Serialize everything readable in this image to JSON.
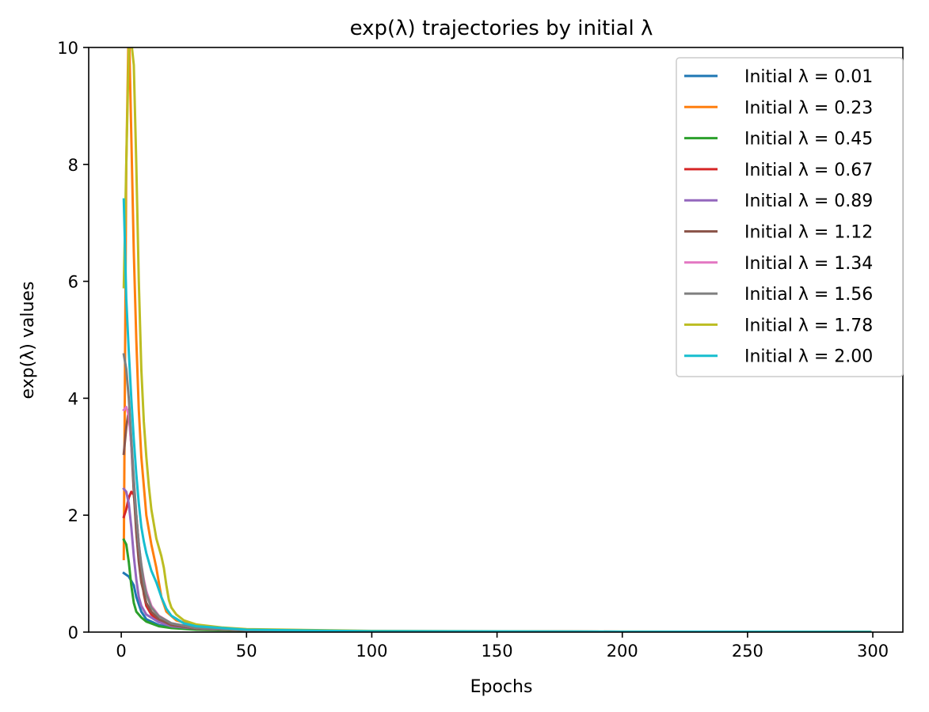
{
  "chart_data": {
    "type": "line",
    "title": "exp(λ) trajectories by initial λ",
    "xlabel": "Epochs",
    "ylabel": "exp(λ) values",
    "xlim": [
      -13,
      312
    ],
    "ylim": [
      0,
      10
    ],
    "xticks": [
      0,
      50,
      100,
      150,
      200,
      250,
      300
    ],
    "yticks": [
      0,
      2,
      4,
      6,
      8,
      10
    ],
    "grid": false,
    "legend_position": "top-right",
    "x_max": 299,
    "series": [
      {
        "name": "Initial λ = 0.01",
        "color": "#1f77b4",
        "points": [
          [
            1,
            1.01
          ],
          [
            3,
            0.95
          ],
          [
            5,
            0.8
          ],
          [
            6,
            0.6
          ],
          [
            8,
            0.35
          ],
          [
            10,
            0.22
          ],
          [
            15,
            0.12
          ],
          [
            20,
            0.08
          ],
          [
            30,
            0.05
          ],
          [
            50,
            0.03
          ],
          [
            80,
            0.015
          ],
          [
            120,
            0.008
          ],
          [
            200,
            0.005
          ],
          [
            299,
            0.003
          ]
        ]
      },
      {
        "name": "Initial λ = 0.23",
        "color": "#ff7f0e",
        "points": [
          [
            1,
            1.25
          ],
          [
            2,
            8.0
          ],
          [
            3,
            10.5
          ],
          [
            4,
            8.5
          ],
          [
            5,
            6.5
          ],
          [
            6,
            5.0
          ],
          [
            7,
            3.8
          ],
          [
            8,
            3.0
          ],
          [
            10,
            2.0
          ],
          [
            12,
            1.5
          ],
          [
            14,
            1.1
          ],
          [
            16,
            0.6
          ],
          [
            18,
            0.35
          ],
          [
            22,
            0.2
          ],
          [
            30,
            0.1
          ],
          [
            50,
            0.04
          ],
          [
            100,
            0.015
          ],
          [
            200,
            0.006
          ],
          [
            299,
            0.004
          ]
        ]
      },
      {
        "name": "Initial λ = 0.45",
        "color": "#2ca02c",
        "points": [
          [
            1,
            1.58
          ],
          [
            2,
            1.5
          ],
          [
            3,
            1.2
          ],
          [
            4,
            0.8
          ],
          [
            5,
            0.5
          ],
          [
            6,
            0.35
          ],
          [
            8,
            0.25
          ],
          [
            10,
            0.18
          ],
          [
            15,
            0.1
          ],
          [
            20,
            0.07
          ],
          [
            30,
            0.04
          ],
          [
            50,
            0.025
          ],
          [
            100,
            0.012
          ],
          [
            200,
            0.006
          ],
          [
            299,
            0.004
          ]
        ]
      },
      {
        "name": "Initial λ = 0.67",
        "color": "#d62728",
        "points": [
          [
            1,
            1.97
          ],
          [
            2,
            2.1
          ],
          [
            3,
            2.3
          ],
          [
            4,
            2.4
          ],
          [
            5,
            2.35
          ],
          [
            6,
            2.0
          ],
          [
            7,
            1.5
          ],
          [
            8,
            1.0
          ],
          [
            9,
            0.65
          ],
          [
            10,
            0.45
          ],
          [
            12,
            0.3
          ],
          [
            15,
            0.2
          ],
          [
            20,
            0.12
          ],
          [
            30,
            0.06
          ],
          [
            50,
            0.03
          ],
          [
            100,
            0.014
          ],
          [
            200,
            0.007
          ],
          [
            299,
            0.004
          ]
        ]
      },
      {
        "name": "Initial λ = 0.89",
        "color": "#9467bd",
        "points": [
          [
            1,
            2.45
          ],
          [
            2,
            2.4
          ],
          [
            3,
            2.2
          ],
          [
            4,
            1.8
          ],
          [
            5,
            1.3
          ],
          [
            6,
            0.9
          ],
          [
            7,
            0.6
          ],
          [
            8,
            0.45
          ],
          [
            10,
            0.3
          ],
          [
            15,
            0.17
          ],
          [
            20,
            0.1
          ],
          [
            30,
            0.06
          ],
          [
            50,
            0.03
          ],
          [
            100,
            0.014
          ],
          [
            200,
            0.007
          ],
          [
            299,
            0.004
          ]
        ]
      },
      {
        "name": "Initial λ = 1.12",
        "color": "#8c564b",
        "points": [
          [
            1,
            3.05
          ],
          [
            2,
            3.5
          ],
          [
            3,
            3.8
          ],
          [
            4,
            3.2
          ],
          [
            5,
            2.4
          ],
          [
            6,
            1.7
          ],
          [
            7,
            1.2
          ],
          [
            8,
            0.85
          ],
          [
            10,
            0.5
          ],
          [
            12,
            0.35
          ],
          [
            15,
            0.22
          ],
          [
            20,
            0.12
          ],
          [
            30,
            0.06
          ],
          [
            50,
            0.03
          ],
          [
            100,
            0.014
          ],
          [
            200,
            0.007
          ],
          [
            299,
            0.004
          ]
        ]
      },
      {
        "name": "Initial λ = 1.34",
        "color": "#e377c2",
        "points": [
          [
            1,
            3.8
          ],
          [
            2,
            3.85
          ],
          [
            3,
            3.7
          ],
          [
            4,
            3.2
          ],
          [
            5,
            2.6
          ],
          [
            6,
            2.0
          ],
          [
            7,
            1.5
          ],
          [
            8,
            1.15
          ],
          [
            9,
            0.9
          ],
          [
            10,
            0.7
          ],
          [
            12,
            0.45
          ],
          [
            15,
            0.28
          ],
          [
            20,
            0.15
          ],
          [
            30,
            0.07
          ],
          [
            50,
            0.035
          ],
          [
            100,
            0.015
          ],
          [
            200,
            0.007
          ],
          [
            299,
            0.004
          ]
        ]
      },
      {
        "name": "Initial λ = 1.56",
        "color": "#7f7f7f",
        "points": [
          [
            1,
            4.75
          ],
          [
            2,
            4.5
          ],
          [
            3,
            4.0
          ],
          [
            4,
            3.3
          ],
          [
            5,
            2.6
          ],
          [
            6,
            2.0
          ],
          [
            7,
            1.5
          ],
          [
            8,
            1.15
          ],
          [
            9,
            0.85
          ],
          [
            10,
            0.65
          ],
          [
            12,
            0.42
          ],
          [
            15,
            0.27
          ],
          [
            20,
            0.15
          ],
          [
            30,
            0.07
          ],
          [
            50,
            0.035
          ],
          [
            100,
            0.015
          ],
          [
            200,
            0.007
          ],
          [
            299,
            0.004
          ]
        ]
      },
      {
        "name": "Initial λ = 1.78",
        "color": "#bcbd22",
        "points": [
          [
            1,
            5.9
          ],
          [
            2,
            8.0
          ],
          [
            3,
            10.0
          ],
          [
            4,
            10.1
          ],
          [
            5,
            9.7
          ],
          [
            6,
            8.0
          ],
          [
            7,
            6.0
          ],
          [
            8,
            4.5
          ],
          [
            9,
            3.6
          ],
          [
            10,
            3.0
          ],
          [
            11,
            2.5
          ],
          [
            12,
            2.1
          ],
          [
            14,
            1.6
          ],
          [
            16,
            1.3
          ],
          [
            17,
            1.1
          ],
          [
            18,
            0.8
          ],
          [
            19,
            0.55
          ],
          [
            20,
            0.42
          ],
          [
            22,
            0.3
          ],
          [
            25,
            0.2
          ],
          [
            30,
            0.13
          ],
          [
            40,
            0.08
          ],
          [
            50,
            0.05
          ],
          [
            100,
            0.02
          ],
          [
            200,
            0.008
          ],
          [
            299,
            0.005
          ]
        ]
      },
      {
        "name": "Initial λ = 2.00",
        "color": "#17becf",
        "points": [
          [
            1,
            7.4
          ],
          [
            2,
            5.7
          ],
          [
            3,
            4.8
          ],
          [
            4,
            4.0
          ],
          [
            5,
            3.3
          ],
          [
            6,
            2.7
          ],
          [
            7,
            2.2
          ],
          [
            8,
            1.8
          ],
          [
            9,
            1.55
          ],
          [
            10,
            1.35
          ],
          [
            12,
            1.05
          ],
          [
            14,
            0.85
          ],
          [
            16,
            0.6
          ],
          [
            18,
            0.4
          ],
          [
            20,
            0.28
          ],
          [
            25,
            0.15
          ],
          [
            30,
            0.1
          ],
          [
            50,
            0.04
          ],
          [
            100,
            0.016
          ],
          [
            200,
            0.007
          ],
          [
            299,
            0.004
          ]
        ]
      }
    ]
  }
}
